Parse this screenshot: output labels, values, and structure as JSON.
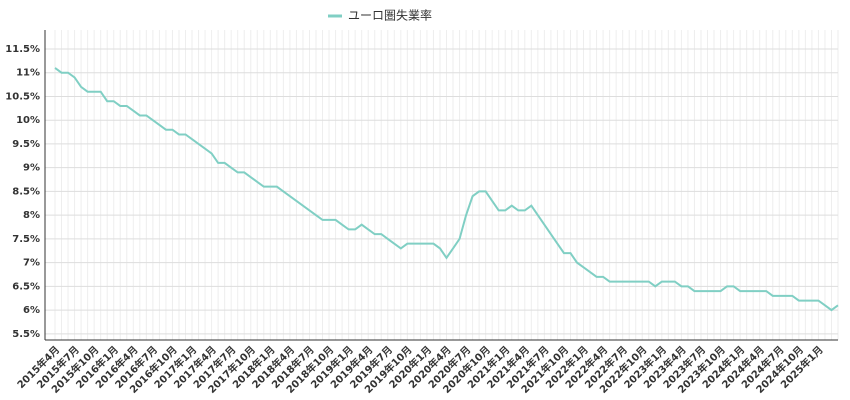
{
  "chart_data": {
    "type": "line",
    "categories": [
      "2015年4月",
      null,
      null,
      "2015年7月",
      null,
      null,
      "2015年10月",
      null,
      null,
      "2016年1月",
      null,
      null,
      "2016年4月",
      null,
      null,
      "2016年7月",
      null,
      null,
      "2016年10月",
      null,
      null,
      "2017年1月",
      null,
      null,
      "2017年4月",
      null,
      null,
      "2017年7月",
      null,
      null,
      "2017年10月",
      null,
      null,
      "2018年1月",
      null,
      null,
      "2018年4月",
      null,
      null,
      "2018年7月",
      null,
      null,
      "2018年10月",
      null,
      null,
      "2019年1月",
      null,
      null,
      "2019年4月",
      null,
      null,
      "2019年7月",
      null,
      null,
      "2019年10月",
      null,
      null,
      "2020年1月",
      null,
      null,
      "2020年4月",
      null,
      null,
      "2020年7月",
      null,
      null,
      "2020年10月",
      null,
      null,
      "2021年1月",
      null,
      null,
      "2021年4月",
      null,
      null,
      "2021年7月",
      null,
      null,
      "2021年10月",
      null,
      null,
      "2022年1月",
      null,
      null,
      "2022年4月",
      null,
      null,
      "2022年7月",
      null,
      null,
      "2022年10月",
      null,
      null,
      "2023年1月",
      null,
      null,
      "2023年4月",
      null,
      null,
      "2023年7月",
      null,
      null,
      "2023年10月",
      null,
      null,
      "2024年1月",
      null,
      null,
      "2024年4月",
      null,
      null,
      "2024年7月",
      null,
      null,
      "2024年10月",
      null,
      null,
      "2025年1月",
      null,
      null,
      null
    ],
    "series": [
      {
        "name": "ユーロ圏失業率",
        "color": "#80cfc4",
        "values": [
          11.1,
          11.0,
          11.0,
          10.9,
          10.7,
          10.6,
          10.6,
          10.6,
          10.4,
          10.4,
          10.3,
          10.3,
          10.2,
          10.1,
          10.1,
          10.0,
          9.9,
          9.8,
          9.8,
          9.7,
          9.7,
          9.6,
          9.5,
          9.4,
          9.3,
          9.1,
          9.1,
          9.0,
          8.9,
          8.9,
          8.8,
          8.7,
          8.6,
          8.6,
          8.6,
          8.5,
          8.4,
          8.3,
          8.2,
          8.1,
          8.0,
          7.9,
          7.9,
          7.9,
          7.8,
          7.7,
          7.7,
          7.8,
          7.7,
          7.6,
          7.6,
          7.5,
          7.4,
          7.3,
          7.4,
          7.4,
          7.4,
          7.4,
          7.4,
          7.3,
          7.1,
          7.3,
          7.5,
          8.0,
          8.4,
          8.5,
          8.5,
          8.3,
          8.1,
          8.1,
          8.2,
          8.1,
          8.1,
          8.2,
          8.0,
          7.8,
          7.6,
          7.4,
          7.2,
          7.2,
          7.0,
          6.9,
          6.8,
          6.7,
          6.7,
          6.6,
          6.6,
          6.6,
          6.6,
          6.6,
          6.6,
          6.6,
          6.5,
          6.6,
          6.6,
          6.6,
          6.5,
          6.5,
          6.4,
          6.4,
          6.4,
          6.4,
          6.4,
          6.5,
          6.5,
          6.4,
          6.4,
          6.4,
          6.4,
          6.4,
          6.3,
          6.3,
          6.3,
          6.3,
          6.2,
          6.2,
          6.2,
          6.2,
          6.1,
          6.0,
          6.1
        ]
      }
    ],
    "ylim": [
      5.37,
      11.9
    ],
    "yticks": [
      {
        "value": 5.5,
        "label": "5.5%"
      },
      {
        "value": 6,
        "label": "6%"
      },
      {
        "value": 6.5,
        "label": "6.5%"
      },
      {
        "value": 7,
        "label": "7%"
      },
      {
        "value": 7.5,
        "label": "7.5%"
      },
      {
        "value": 8,
        "label": "8%"
      },
      {
        "value": 8.5,
        "label": "8.5%"
      },
      {
        "value": 9,
        "label": "9%"
      },
      {
        "value": 9.5,
        "label": "9.5%"
      },
      {
        "value": 10,
        "label": "10%"
      },
      {
        "value": 10.5,
        "label": "10.5%"
      },
      {
        "value": 11,
        "label": "11%"
      },
      {
        "value": 11.5,
        "label": "11.5%"
      }
    ],
    "grid": true,
    "legend": "top"
  }
}
